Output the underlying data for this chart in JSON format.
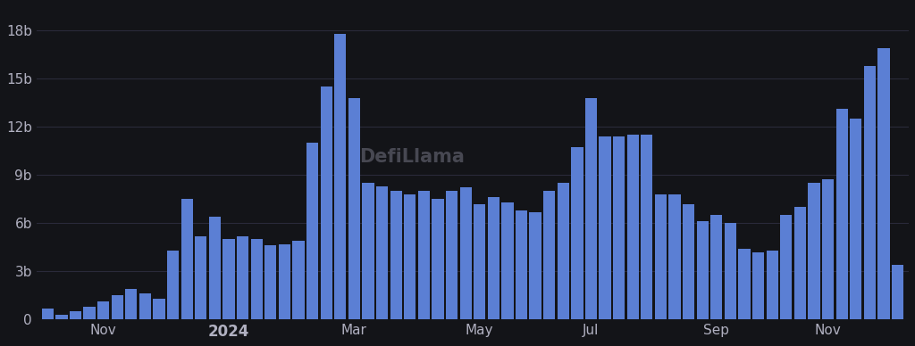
{
  "values": [
    0.7,
    0.3,
    0.5,
    0.8,
    1.1,
    1.5,
    1.9,
    1.6,
    1.3,
    4.3,
    7.5,
    5.2,
    6.4,
    5.0,
    5.2,
    5.0,
    4.6,
    4.7,
    4.9,
    11.0,
    14.5,
    17.8,
    13.8,
    8.5,
    8.3,
    8.0,
    7.8,
    8.0,
    7.5,
    8.0,
    8.2,
    7.2,
    7.6,
    7.3,
    6.8,
    6.7,
    8.0,
    8.5,
    10.7,
    13.8,
    11.4,
    11.4,
    11.5,
    11.5,
    7.8,
    7.8,
    7.2,
    6.1,
    6.5,
    6.0,
    4.4,
    4.2,
    4.3,
    6.5,
    7.0,
    8.5,
    8.7,
    13.1,
    12.5,
    15.8,
    16.9,
    3.4
  ],
  "bar_color": "#5b7fd4",
  "bg_color": "#131418",
  "grid_color": "#2a2a3a",
  "text_color": "#b0b0c0",
  "ytick_labels": [
    "0",
    "3b",
    "6b",
    "9b",
    "12b",
    "15b",
    "18b"
  ],
  "ytick_values": [
    0,
    3,
    6,
    9,
    12,
    15,
    18
  ],
  "ylim": [
    0,
    19.5
  ],
  "xtick_labels": [
    "Nov",
    "2024",
    "Mar",
    "May",
    "Jul",
    "Sep",
    "Nov"
  ],
  "xtick_positions": [
    4,
    13,
    22,
    31,
    39,
    48,
    56
  ],
  "watermark": "DefiLlama"
}
